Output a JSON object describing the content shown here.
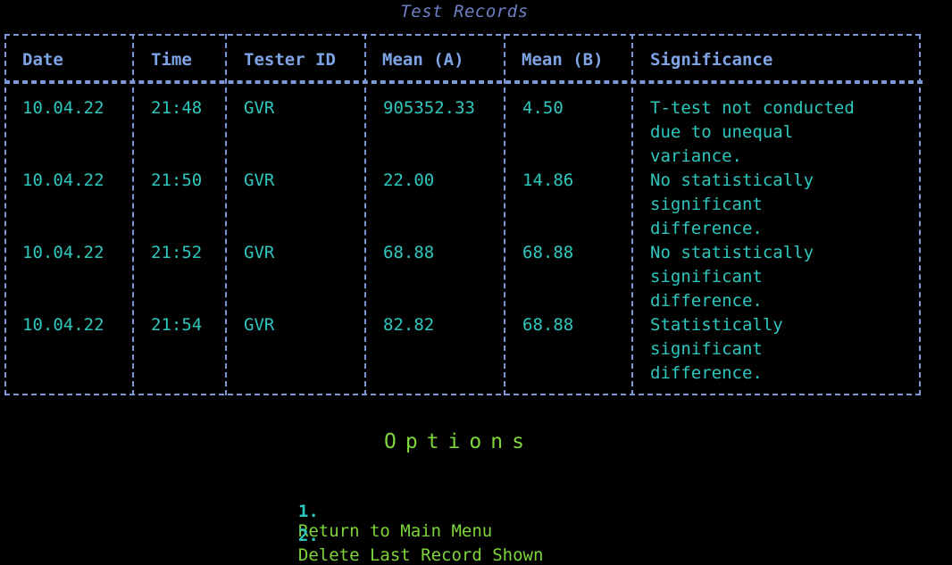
{
  "title": "Test Records",
  "table": {
    "headers": [
      "Date",
      "Time",
      "Tester ID",
      "Mean (A)",
      "Mean (B)",
      "Significance"
    ],
    "rows": [
      {
        "date": "10.04.22",
        "time": "21:48",
        "tester": "GVR",
        "mean_a": "905352.33",
        "mean_b": "4.50",
        "significance": [
          "T-test not conducted",
          "due to unequal",
          "variance."
        ]
      },
      {
        "date": "10.04.22",
        "time": "21:50",
        "tester": "GVR",
        "mean_a": "22.00",
        "mean_b": "14.86",
        "significance": [
          "No statistically",
          "significant",
          "difference."
        ]
      },
      {
        "date": "10.04.22",
        "time": "21:52",
        "tester": "GVR",
        "mean_a": "68.88",
        "mean_b": "68.88",
        "significance": [
          "No statistically",
          "significant",
          "difference."
        ]
      },
      {
        "date": "10.04.22",
        "time": "21:54",
        "tester": "GVR",
        "mean_a": "82.82",
        "mean_b": "68.88",
        "significance": [
          "Statistically",
          "significant",
          "difference."
        ]
      }
    ]
  },
  "options": {
    "title": "Options",
    "items": [
      {
        "number": "1.",
        "label": "Return to Main Menu"
      },
      {
        "number": "2.",
        "label": "Delete Last Record Shown"
      }
    ]
  },
  "colors": {
    "background": "#000000",
    "border": "#7e98d6",
    "header_text": "#7ea4e6",
    "cell_text": "#2ec7be",
    "options_text": "#7ed53a",
    "title_text": "#6c7fc4"
  }
}
